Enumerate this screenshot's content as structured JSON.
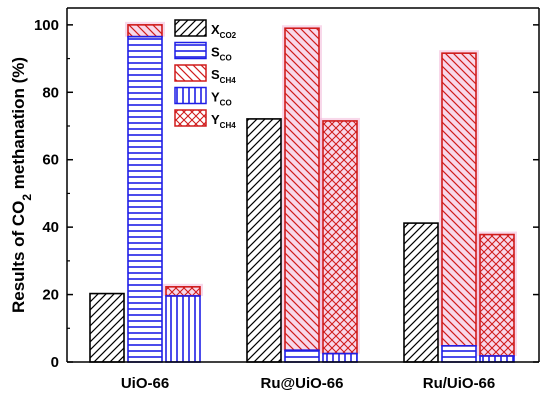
{
  "chart_data": {
    "type": "bar",
    "title": "",
    "xlabel": "",
    "ylabel": "Results of CO2 methanation (%)",
    "ylabel_parts": {
      "pre": "Results of CO",
      "sub": "2",
      "post": " methanation (%)"
    },
    "ylim": [
      0,
      105
    ],
    "yticks": [
      0,
      20,
      40,
      60,
      80,
      100
    ],
    "categories": [
      "UiO-66",
      "Ru@UiO-66",
      "Ru/UiO-66"
    ],
    "legend_position": "top-center",
    "colors": {
      "black": "#000000",
      "blue": "#1f1fe6",
      "red": "#d01c1c",
      "pink_glow": "#f2b8d8"
    },
    "bars": [
      {
        "category": "UiO-66",
        "items": [
          {
            "series": "X_CO2",
            "value": 20.3
          },
          {
            "series": "S_CO",
            "value": 96.5,
            "stack_on": "S_CH4",
            "stack_value": 3.5
          },
          {
            "series": "Y_CO",
            "value": 19.6,
            "stack_on": "Y_CH4",
            "stack_value": 2.7
          }
        ]
      },
      {
        "category": "Ru@UiO-66",
        "items": [
          {
            "series": "X_CO2",
            "value": 72.1
          },
          {
            "series": "S_CO",
            "value": 3.5,
            "stack_on": "S_CH4",
            "stack_value": 95.5
          },
          {
            "series": "Y_CO",
            "value": 2.5,
            "stack_on": "Y_CH4",
            "stack_value": 69.0
          }
        ]
      },
      {
        "category": "Ru/UiO-66",
        "items": [
          {
            "series": "X_CO2",
            "value": 41.2
          },
          {
            "series": "S_CO",
            "value": 4.8,
            "stack_on": "S_CH4",
            "stack_value": 86.8
          },
          {
            "series": "Y_CO",
            "value": 1.8,
            "stack_on": "Y_CH4",
            "stack_value": 36.0
          }
        ]
      }
    ],
    "legend": [
      {
        "key": "X_CO2",
        "main": "X",
        "sub": "CO2"
      },
      {
        "key": "S_CO",
        "main": "S",
        "sub": "CO"
      },
      {
        "key": "S_CH4",
        "main": "S",
        "sub": "CH4"
      },
      {
        "key": "Y_CO",
        "main": "Y",
        "sub": "CO"
      },
      {
        "key": "Y_CH4",
        "main": "Y",
        "sub": "CH4"
      }
    ]
  }
}
